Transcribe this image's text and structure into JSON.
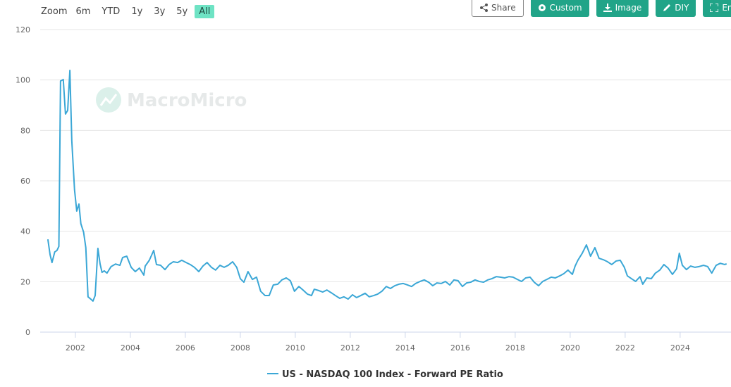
{
  "toolbar": {
    "zoom_label": "Zoom",
    "ranges": [
      "6m",
      "YTD",
      "1y",
      "3y",
      "5y",
      "All"
    ],
    "active": "All",
    "buttons": [
      "Share",
      "Custom",
      "Image",
      "DIY",
      "Enlarge"
    ]
  },
  "watermark": "MacroMicro",
  "chart_data": {
    "type": "line",
    "xlim": [
      2000.72,
      2025.85
    ],
    "xticks": [
      2002,
      2004,
      2006,
      2008,
      2010,
      2012,
      2014,
      2016,
      2018,
      2020,
      2022,
      2024
    ],
    "ylim": [
      0,
      120
    ],
    "yticks": [
      0,
      20,
      40,
      60,
      80,
      100,
      120
    ],
    "grid": true,
    "x": [
      2001.0,
      2001.08,
      2001.15,
      2001.25,
      2001.33,
      2001.4,
      2001.46,
      2001.56,
      2001.64,
      2001.72,
      2001.8,
      2001.87,
      2001.97,
      2002.05,
      2002.13,
      2002.2,
      2002.3,
      2002.38,
      2002.46,
      2002.56,
      2002.64,
      2002.72,
      2002.82,
      2002.9,
      2002.97,
      2003.05,
      2003.15,
      2003.3,
      2003.46,
      2003.62,
      2003.72,
      2003.87,
      2004.03,
      2004.18,
      2004.33,
      2004.49,
      2004.54,
      2004.69,
      2004.85,
      2004.95,
      2005.1,
      2005.26,
      2005.41,
      2005.56,
      2005.72,
      2005.87,
      2006.03,
      2006.18,
      2006.33,
      2006.49,
      2006.64,
      2006.79,
      2006.95,
      2007.1,
      2007.26,
      2007.41,
      2007.56,
      2007.72,
      2007.87,
      2008.0,
      2008.13,
      2008.28,
      2008.44,
      2008.59,
      2008.74,
      2008.9,
      2009.05,
      2009.2,
      2009.36,
      2009.51,
      2009.67,
      2009.82,
      2009.97,
      2010.13,
      2010.28,
      2010.44,
      2010.59,
      2010.69,
      2010.85,
      2011.0,
      2011.15,
      2011.31,
      2011.46,
      2011.62,
      2011.77,
      2011.92,
      2012.08,
      2012.23,
      2012.38,
      2012.54,
      2012.69,
      2012.85,
      2013.0,
      2013.15,
      2013.31,
      2013.46,
      2013.62,
      2013.77,
      2013.92,
      2014.08,
      2014.23,
      2014.38,
      2014.54,
      2014.69,
      2014.85,
      2015.0,
      2015.15,
      2015.31,
      2015.46,
      2015.62,
      2015.77,
      2015.92,
      2016.08,
      2016.23,
      2016.38,
      2016.54,
      2016.69,
      2016.85,
      2017.0,
      2017.15,
      2017.31,
      2017.46,
      2017.62,
      2017.77,
      2017.92,
      2018.08,
      2018.23,
      2018.38,
      2018.54,
      2018.69,
      2018.85,
      2019.0,
      2019.15,
      2019.31,
      2019.46,
      2019.62,
      2019.77,
      2019.92,
      2020.08,
      2020.18,
      2020.28,
      2020.44,
      2020.59,
      2020.74,
      2020.9,
      2021.05,
      2021.21,
      2021.36,
      2021.51,
      2021.67,
      2021.82,
      2021.97,
      2022.08,
      2022.23,
      2022.38,
      2022.54,
      2022.64,
      2022.79,
      2022.95,
      2023.1,
      2023.26,
      2023.41,
      2023.56,
      2023.72,
      2023.87,
      2023.97,
      2024.08,
      2024.23,
      2024.38,
      2024.54,
      2024.69,
      2024.85,
      2025.0,
      2025.15,
      2025.31,
      2025.46,
      2025.62,
      2025.69
    ],
    "series": [
      {
        "name": "US - NASDAQ 100 Index - Forward PE Ratio",
        "color": "#3ba7d6",
        "values": [
          36.8,
          30.7,
          27.6,
          31.8,
          32.4,
          34,
          99.6,
          100.2,
          86.5,
          87.9,
          103.8,
          75.9,
          56.4,
          48,
          50.8,
          43,
          39.6,
          33.5,
          14,
          13.1,
          12.3,
          14.5,
          33.2,
          27,
          23.7,
          24.3,
          23.4,
          26,
          27,
          26.5,
          29.6,
          30.1,
          25.7,
          24,
          25.4,
          22.6,
          26.2,
          28.5,
          32.4,
          26.8,
          26.5,
          24.8,
          26.8,
          27.9,
          27.6,
          28.5,
          27.6,
          26.8,
          25.7,
          24,
          26.2,
          27.6,
          25.7,
          24.6,
          26.5,
          25.7,
          26.5,
          27.9,
          25.7,
          21.2,
          19.8,
          24,
          20.9,
          21.8,
          16.2,
          14.5,
          14.5,
          18.7,
          19,
          20.7,
          21.5,
          20.4,
          16.2,
          18.1,
          16.7,
          15.1,
          14.5,
          17,
          16.5,
          15.9,
          16.7,
          15.6,
          14.5,
          13.4,
          14,
          13.1,
          14.8,
          13.7,
          14.5,
          15.4,
          14,
          14.5,
          15.1,
          16.2,
          18.1,
          17.3,
          18.4,
          19,
          19.3,
          18.7,
          18.1,
          19.3,
          20.1,
          20.7,
          19.8,
          18.4,
          19.5,
          19.3,
          20.1,
          18.7,
          20.7,
          20.4,
          18.1,
          19.5,
          19.8,
          20.7,
          20.1,
          19.8,
          20.7,
          21.2,
          22,
          21.8,
          21.5,
          22,
          21.8,
          20.9,
          20.1,
          21.5,
          21.8,
          19.8,
          18.4,
          20.1,
          20.9,
          21.8,
          21.5,
          22.3,
          23.2,
          24.6,
          22.9,
          26.2,
          28.5,
          31.3,
          34.6,
          30.1,
          33.5,
          29.3,
          28.7,
          27.9,
          26.8,
          28.2,
          28.5,
          25.7,
          22.3,
          21.2,
          20.1,
          22,
          19,
          21.5,
          21.2,
          23.4,
          24.6,
          26.8,
          25.4,
          22.9,
          25.1,
          31.3,
          26.5,
          24.8,
          26.2,
          25.7,
          26,
          26.5,
          26,
          23.4,
          26.5,
          27.3,
          26.8,
          27.1
        ]
      }
    ]
  }
}
